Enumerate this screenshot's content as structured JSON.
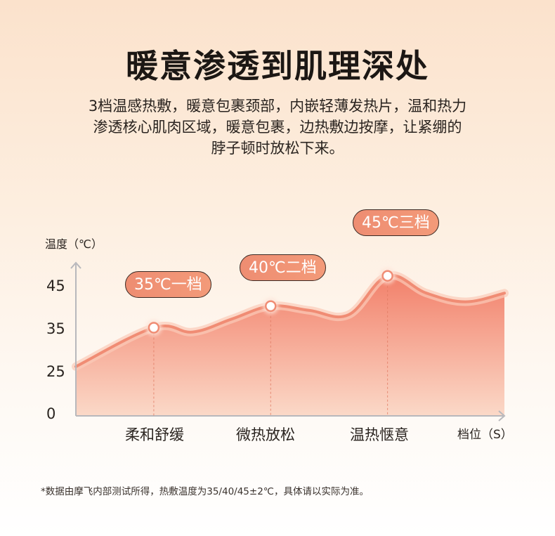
{
  "heading": {
    "title": "暖意渗透到肌理深处",
    "description_lines": [
      "3档温感热敷，暖意包裹颈部，内嵌轻薄发热片，温和热力",
      "渗透核心肌肉区域，暖意包裹，边热敷边按摩，让紧绷的",
      "脖子顿时放松下来。"
    ]
  },
  "chart_data": {
    "type": "area",
    "ylabel": "温度（℃）",
    "xlabel": "档位（S）",
    "ylim": [
      0,
      55
    ],
    "yticks": [
      0,
      25,
      35,
      45
    ],
    "categories": [
      "柔和舒缓",
      "微热放松",
      "温热惬意"
    ],
    "levels": [
      {
        "category": "柔和舒缓",
        "value": 35,
        "label": "35℃一档"
      },
      {
        "category": "微热放松",
        "value": 40,
        "label": "40℃二档"
      },
      {
        "category": "温热惬意",
        "value": 45,
        "label": "45℃三档"
      }
    ],
    "curve": [
      {
        "x": 0.0,
        "y": 26
      },
      {
        "x": 1.0,
        "y": 35
      },
      {
        "x": 1.5,
        "y": 34
      },
      {
        "x": 2.0,
        "y": 37
      },
      {
        "x": 2.5,
        "y": 40
      },
      {
        "x": 3.0,
        "y": 39
      },
      {
        "x": 3.5,
        "y": 38
      },
      {
        "x": 4.0,
        "y": 47
      },
      {
        "x": 4.5,
        "y": 43
      },
      {
        "x": 5.0,
        "y": 41
      },
      {
        "x": 5.5,
        "y": 43
      }
    ],
    "level_x": [
      1.0,
      2.5,
      4.0
    ],
    "grid": false,
    "colors": {
      "line": "#f08c74",
      "fill_top": "#f2806a",
      "fill_bottom": "#fbd9c8",
      "axis": "#b8b8bc",
      "callout_bg": "#f0917a",
      "callout_border": "#3a2a24"
    }
  },
  "footnote": "*数据由摩飞内部测试所得，热敷温度为35/40/45±2℃，具体请以实际为准。"
}
